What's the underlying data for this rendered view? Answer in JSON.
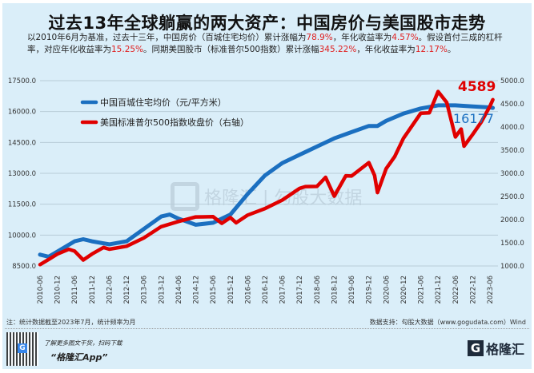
{
  "title": "过去13年全球躺赢的两大资产：中国房价与美国股市走势",
  "subtitle": {
    "p1": "以2010年6月为基准，过去十三年，中国房价（百城住宅均价）累计涨幅为",
    "v1": "78.9%",
    "p2": "，年化收益率为",
    "v2": "4.57%",
    "p3": "。假设首付三成的杠杆率，对应年化收益率为",
    "v3": "15.25%",
    "p4": "。同期美国股市（标准普尔500指数）累计涨幅",
    "v4": "345.22%",
    "p5": "，年化收益率为",
    "v5": "12.17%",
    "p6": "。"
  },
  "watermark": {
    "text": "格隆汇 | 勾股大数据",
    "url": "www.gogudata.com"
  },
  "footer": {
    "note": "注：统计数据截至2023年7月，统计频率为月",
    "source": "数据支持：勾股大数据（www.gogudata.com）Wind",
    "promo": "了解更多图文干货，扫码下载",
    "app": "“格隆汇App”",
    "logo": "格隆汇"
  },
  "colors": {
    "blue": "#1b6fc0",
    "red": "#e00000",
    "grid": "#b8ccd8"
  },
  "chart_data": {
    "type": "line",
    "title": "过去13年全球躺赢的两大资产：中国房价与美国股市走势",
    "left_axis": {
      "ylim": [
        8500,
        17500
      ],
      "ticks": [
        "8500.0",
        "10000.0",
        "11500.0",
        "13000.0",
        "14500.0",
        "16000.0",
        "17500.0"
      ]
    },
    "right_axis": {
      "ylim": [
        1000,
        5000
      ],
      "ticks": [
        "1000.0",
        "1500.0",
        "2000.0",
        "2500.0",
        "3000.0",
        "3500.0",
        "4000.0",
        "4500.0",
        "5000.0"
      ]
    },
    "x_ticks": [
      "2010-06",
      "2010-12",
      "2011-06",
      "2011-12",
      "2012-06",
      "2012-12",
      "2013-06",
      "2013-12",
      "2014-06",
      "2014-12",
      "2015-06",
      "2015-12",
      "2016-06",
      "2016-12",
      "2017-06",
      "2017-12",
      "2018-06",
      "2018-12",
      "2019-06",
      "2019-12",
      "2020-06",
      "2020-12",
      "2021-06",
      "2021-12",
      "2022-06",
      "2022-12",
      "2023-06"
    ],
    "grid": true,
    "legend_position": "top-left",
    "series": [
      {
        "name": "中国百城住宅均价（元/平方米）",
        "axis": "left",
        "color": "#1b6fc0",
        "end_label": "16177",
        "x": [
          "2010-06",
          "2010-09",
          "2010-12",
          "2011-06",
          "2011-09",
          "2011-12",
          "2012-06",
          "2012-12",
          "2013-06",
          "2013-12",
          "2014-03",
          "2014-06",
          "2014-12",
          "2015-06",
          "2015-12",
          "2016-06",
          "2016-12",
          "2017-06",
          "2017-12",
          "2018-06",
          "2018-12",
          "2019-06",
          "2019-12",
          "2020-03",
          "2020-06",
          "2020-12",
          "2021-06",
          "2021-12",
          "2022-06",
          "2022-12",
          "2023-06",
          "2023-07"
        ],
        "values": [
          9050,
          8950,
          9200,
          9700,
          9800,
          9700,
          9550,
          9700,
          10300,
          10900,
          11000,
          10800,
          10500,
          10600,
          11000,
          12000,
          12900,
          13500,
          13900,
          14300,
          14700,
          15000,
          15300,
          15300,
          15550,
          15900,
          16150,
          16300,
          16300,
          16250,
          16200,
          16177
        ]
      },
      {
        "name": "美国标准普尔500指数收盘价（右轴）",
        "axis": "right",
        "color": "#e00000",
        "end_label": "4589",
        "x": [
          "2010-06",
          "2010-09",
          "2010-12",
          "2011-04",
          "2011-06",
          "2011-09",
          "2011-12",
          "2012-04",
          "2012-06",
          "2012-12",
          "2013-06",
          "2013-12",
          "2014-06",
          "2014-12",
          "2015-06",
          "2015-09",
          "2015-12",
          "2016-02",
          "2016-06",
          "2016-12",
          "2017-06",
          "2017-12",
          "2018-02",
          "2018-06",
          "2018-09",
          "2018-12",
          "2019-04",
          "2019-06",
          "2019-12",
          "2020-02",
          "2020-03",
          "2020-06",
          "2020-09",
          "2020-12",
          "2021-06",
          "2021-09",
          "2021-12",
          "2022-03",
          "2022-06",
          "2022-08",
          "2022-09",
          "2022-12",
          "2023-03",
          "2023-06",
          "2023-07"
        ],
        "values": [
          1030,
          1141,
          1257,
          1360,
          1320,
          1130,
          1257,
          1400,
          1362,
          1426,
          1606,
          1848,
          1960,
          2058,
          2063,
          1920,
          2044,
          1932,
          2099,
          2239,
          2423,
          2674,
          2714,
          2718,
          2914,
          2507,
          2946,
          2942,
          3231,
          2954,
          2585,
          3100,
          3363,
          3756,
          4297,
          4307,
          4766,
          4530,
          3785,
          3955,
          3586,
          3840,
          4109,
          4450,
          4589
        ]
      }
    ]
  }
}
